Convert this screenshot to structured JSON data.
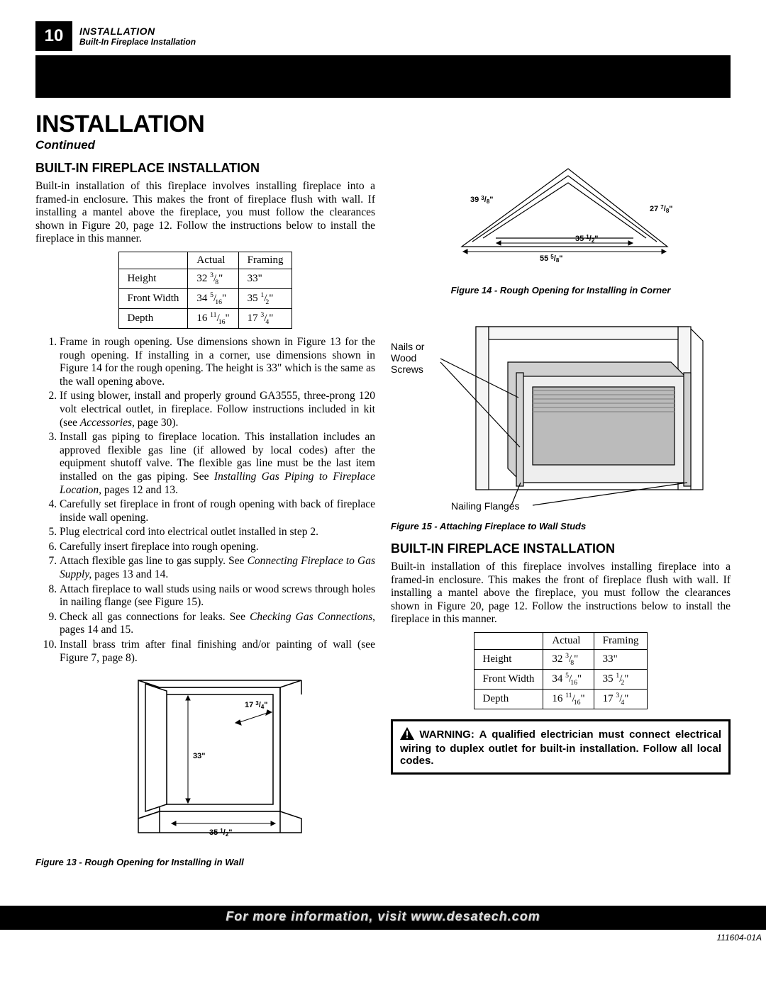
{
  "page_number": "10",
  "header": {
    "line1": "INSTALLATION",
    "line2": "Built-In Fireplace Installation"
  },
  "title": "INSTALLATION",
  "continued": "Continued",
  "left": {
    "subhead": "BUILT-IN FIREPLACE INSTALLATION",
    "intro": "Built-in installation of this fireplace involves installing fireplace into a framed-in enclosure. This makes the front of fireplace flush with wall. If installing a mantel above the fireplace, you must follow the clearances shown in Figure 20, page 12. Follow the instructions below to install the fireplace in this manner.",
    "table": {
      "cols": [
        "",
        "Actual",
        "Framing"
      ],
      "rows": [
        [
          "Height",
          "32 3/8\"",
          "33\""
        ],
        [
          "Front Width",
          "34 5/16\"",
          "35 1/2\""
        ],
        [
          "Depth",
          "16 11/16\"",
          "17 3/4\""
        ]
      ]
    },
    "steps": [
      "Frame in rough opening. Use dimensions shown in Figure 13 for the rough opening. If installing in a corner, use dimensions shown in Figure 14 for the rough opening. The height is 33\" which is the same as the wall opening above.",
      "If using blower, install and properly ground GA3555, three-prong 120 volt electrical outlet, in fireplace. Follow instructions included in kit (see <i>Accessories,</i> page 30).",
      "Install gas piping to fireplace location. This installation includes an approved flexible gas line (if allowed by local codes) after the equipment shutoff valve. The flexible gas line must be the last item installed on the gas piping. See <i>Installing Gas Piping to Fireplace Location,</i> pages 12 and 13.",
      "Carefully set fireplace in front of rough opening with back of fireplace inside wall opening.",
      "Plug electrical cord into electrical outlet installed in step 2.",
      "Carefully insert fireplace into rough opening.",
      "Attach flexible gas line to gas supply. See <i>Connecting Fireplace to Gas Supply,</i> pages 13 and 14.",
      "Attach fireplace to wall studs using nails or wood screws through holes in nailing flange (see Figure 15).",
      "Check all gas connections for leaks. See <i>Checking Gas Connections</i>, pages 14 and 15.",
      "Install brass trim after final finishing and/or painting of wall (see Figure 7, page 8)."
    ],
    "fig13": {
      "caption": "Figure 13 - Rough Opening for Installing in Wall",
      "dims": {
        "height": "33\"",
        "width": "35 1/2\"",
        "depth": "17 3/4\""
      }
    }
  },
  "right": {
    "fig14": {
      "caption": "Figure 14 - Rough Opening for Installing in Corner",
      "dims": {
        "left": "39 3/8\"",
        "right": "27 7/8\"",
        "front": "35 1/2\"",
        "base": "55 5/8\""
      }
    },
    "fig15": {
      "caption": "Figure 15 - Attaching Fireplace to Wall Studs",
      "label_nails": "Nails or\nWood\nScrews",
      "label_flanges": "Nailing Flanges"
    },
    "subhead": "BUILT-IN FIREPLACE INSTALLATION",
    "intro": "Built-in installation of this fireplace involves installing fireplace into a framed-in enclosure. This makes the front of fireplace flush with wall. If installing a mantel above the fireplace, you must follow the clearances shown in Figure 20, page 12. Follow the instructions below to install the fireplace in this manner.",
    "table": {
      "cols": [
        "",
        "Actual",
        "Framing"
      ],
      "rows": [
        [
          "Height",
          "32 3/8\"",
          "33\""
        ],
        [
          "Front Width",
          "34 5/16\"",
          "35 1/2\""
        ],
        [
          "Depth",
          "16 11/16\"",
          "17 3/4\""
        ]
      ]
    },
    "warning": "WARNING: A qualified electrician must connect electrical wiring to duplex outlet for built-in installation. Follow all local codes."
  },
  "footer": "For more information, visit www.desatech.com",
  "doc_code": "111604-01A",
  "colors": {
    "black": "#000000",
    "white": "#ffffff",
    "gray_fill": "#d0d0d0",
    "footer_text": "#e0e0e0"
  }
}
